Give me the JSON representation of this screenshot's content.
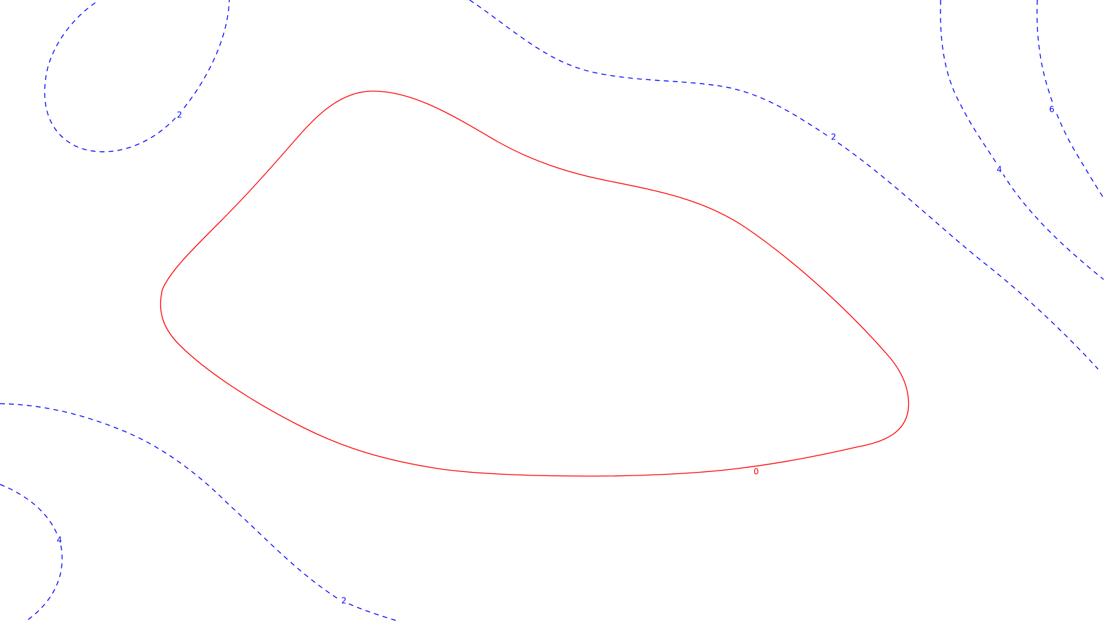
{
  "chart_data": {
    "type": "contour",
    "grid": false,
    "colors": {
      "zero_level": "#ff0000",
      "positive_levels": "#0000ff",
      "background": "#ffffff"
    },
    "levels": [
      {
        "value": 0,
        "label": "0",
        "style": "solid",
        "color": "#ff0000"
      },
      {
        "value": 2,
        "label": "2",
        "style": "dashed",
        "color": "#0000ff"
      },
      {
        "value": 4,
        "label": "4",
        "style": "dashed",
        "color": "#0000ff"
      },
      {
        "value": 6,
        "label": "6",
        "style": "dashed",
        "color": "#0000ff"
      }
    ],
    "contour_labels": [
      {
        "id": "label-0-bottom",
        "text": "0",
        "level": 0
      },
      {
        "id": "label-2-top-left",
        "text": "2",
        "level": 2
      },
      {
        "id": "label-2-top-right",
        "text": "2",
        "level": 2
      },
      {
        "id": "label-2-bottom",
        "text": "2",
        "level": 2
      },
      {
        "id": "label-4-right",
        "text": "4",
        "level": 4
      },
      {
        "id": "label-4-bottom-left",
        "text": "4",
        "level": 4
      },
      {
        "id": "label-6-right",
        "text": "6",
        "level": 6
      }
    ]
  }
}
